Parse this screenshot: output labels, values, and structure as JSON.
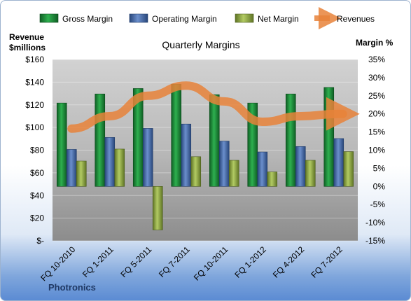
{
  "chart_data": {
    "type": "bar",
    "title": "Quarterly Margins",
    "y_left_label_line1": "Revenue",
    "y_left_label_line2": "$millions",
    "y_right_label": "Margin %",
    "footer": "Photronics",
    "categories": [
      "FQ 10-2010",
      "FQ 1-2011",
      "FQ 5-2011",
      "FQ 7-2011",
      "FQ 10-2011",
      "FQ 1-2012",
      "FQ 4-2012",
      "FQ 7-2012"
    ],
    "left_axis": {
      "ylim": [
        0,
        160
      ],
      "ticks": [
        0,
        20,
        40,
        60,
        80,
        100,
        120,
        140,
        160
      ],
      "tick_labels": [
        "$-",
        "$20",
        "$40",
        "$60",
        "$80",
        "$100",
        "$120",
        "$140",
        "$160"
      ]
    },
    "right_axis": {
      "ylim": [
        -15,
        35
      ],
      "ticks": [
        -15,
        -10,
        -5,
        0,
        5,
        10,
        15,
        20,
        25,
        30,
        35
      ],
      "tick_labels": [
        "-15%",
        "-10%",
        "-5%",
        "0%",
        "5%",
        "10%",
        "15%",
        "20%",
        "25%",
        "30%",
        "35%"
      ]
    },
    "series": [
      {
        "name": "Gross Margin",
        "axis": "right",
        "kind": "bar",
        "color": "#1e8a3a",
        "values": [
          23,
          25.5,
          27,
          28.2,
          25.3,
          23,
          25.5,
          27.3
        ]
      },
      {
        "name": "Operating Margin",
        "axis": "right",
        "kind": "bar",
        "color": "#3f68a9",
        "values": [
          10.2,
          13.5,
          16,
          17.2,
          12.5,
          9.5,
          11,
          13.2
        ]
      },
      {
        "name": "Net Margin",
        "axis": "right",
        "kind": "bar",
        "color": "#8caa3d",
        "values": [
          7,
          10.3,
          -12,
          8.2,
          7.2,
          4,
          7.2,
          9.6
        ]
      },
      {
        "name": "Revenues",
        "axis": "left",
        "kind": "line",
        "color": "#e8823a",
        "values": [
          99,
          110,
          128,
          137,
          123,
          105,
          110,
          112
        ]
      }
    ],
    "grid": true,
    "legend_position": "top"
  }
}
